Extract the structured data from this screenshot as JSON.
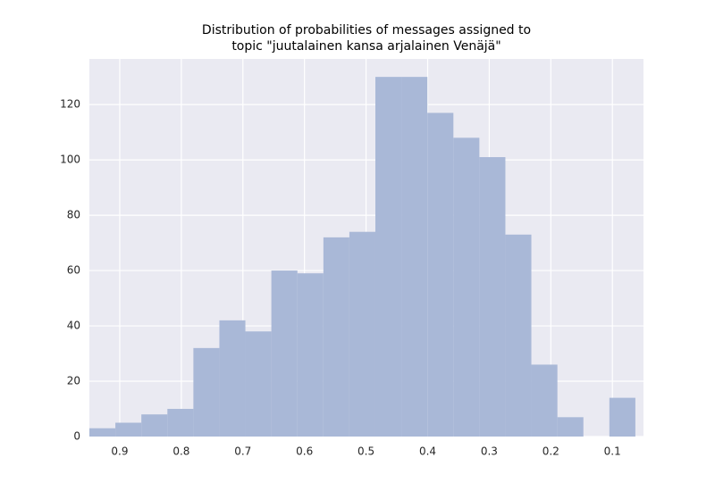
{
  "chart_data": {
    "type": "histogram",
    "title": [
      "Distribution of probabilities of messages assigned to",
      "topic \"juutalainen kansa arjalainen Venäjä\""
    ],
    "bins": [
      0.0627,
      0.1049,
      0.1471,
      0.1893,
      0.2316,
      0.2738,
      0.316,
      0.3582,
      0.4004,
      0.4427,
      0.4849,
      0.5271,
      0.5693,
      0.6115,
      0.6538,
      0.696,
      0.7382,
      0.7804,
      0.8226,
      0.8649,
      0.9071,
      0.9493
    ],
    "values": [
      14,
      0,
      7,
      26,
      73,
      101,
      108,
      117,
      130,
      130,
      74,
      72,
      59,
      60,
      38,
      42,
      32,
      10,
      8,
      5,
      3
    ],
    "color": "#a9b8d7",
    "xlim": [
      0.9493,
      0.0495
    ],
    "xticks": [
      0.9,
      0.8,
      0.7,
      0.6,
      0.5,
      0.4,
      0.3,
      0.2,
      0.1
    ],
    "ylim": [
      0,
      136.5
    ],
    "yticks": [
      0,
      20,
      40,
      60,
      80,
      100,
      120
    ],
    "grid": true
  }
}
